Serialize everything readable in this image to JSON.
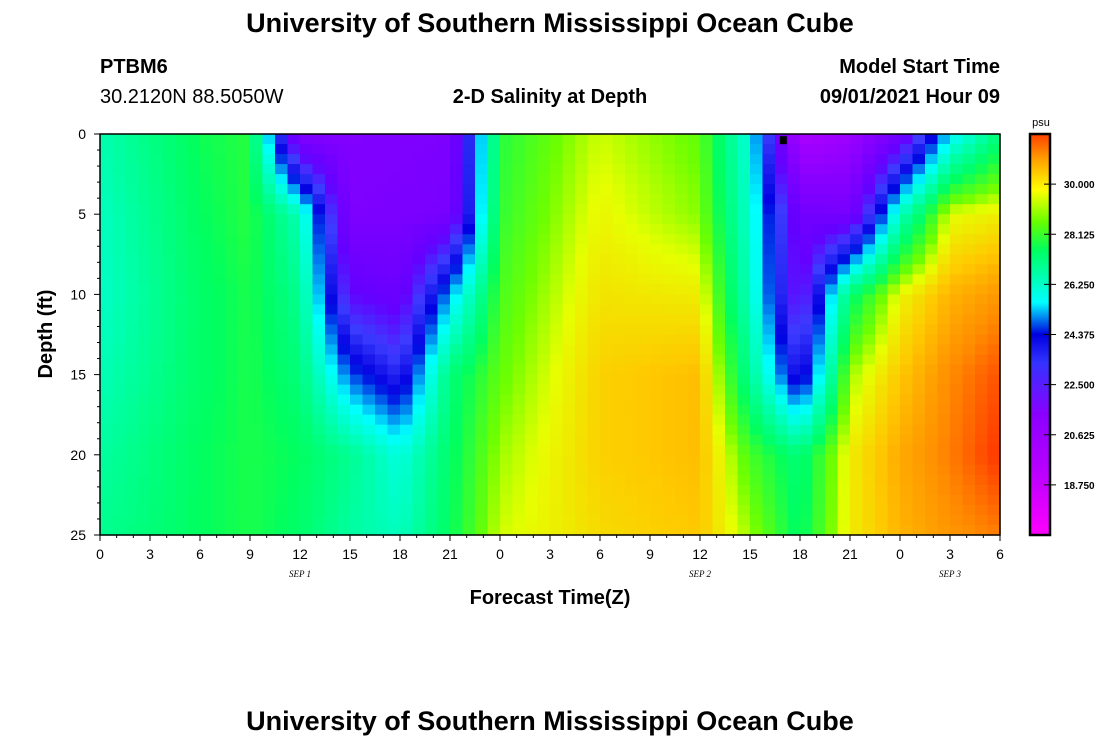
{
  "header": {
    "title": "University of Southern Mississippi Ocean Cube",
    "station_id": "PTBM6",
    "coordinates": "30.2120N  88.5050W",
    "chart_title": "2-D Salinity at Depth",
    "model_start_label": "Model Start Time",
    "model_start_value": "09/01/2021 Hour 09"
  },
  "footer": {
    "title": "University of Southern Mississippi Ocean Cube"
  },
  "chart_data": {
    "type": "heatmap",
    "xlabel": "Forecast Time(Z)",
    "ylabel": "Depth (ft)",
    "y_ticks": [
      0,
      5,
      10,
      15,
      20,
      25
    ],
    "y_range": [
      0,
      25
    ],
    "x_range_hours": [
      0,
      54
    ],
    "x_tick_labels": [
      "0",
      "3",
      "6",
      "9",
      "12",
      "15",
      "18",
      "21",
      "0",
      "3",
      "6",
      "9",
      "12",
      "15",
      "18",
      "21",
      "0",
      "3",
      "6"
    ],
    "date_labels": [
      {
        "text": "SEP 1",
        "at_hour": 12
      },
      {
        "text": "SEP 2",
        "at_hour": 36
      },
      {
        "text": "SEP 3",
        "at_hour": 51
      }
    ],
    "colorbar": {
      "unit": "psu",
      "range": [
        16.875,
        31.875
      ],
      "ticks": [
        "30.000",
        "28.125",
        "26.250",
        "24.375",
        "22.500",
        "20.625",
        "18.750"
      ],
      "ticks_values": [
        30.0,
        28.125,
        26.25,
        24.375,
        22.5,
        20.625,
        18.75
      ]
    },
    "marker": {
      "hour": 41,
      "depth": 0.2
    },
    "salinity_grid": {
      "note_depths_ft": [
        0,
        5,
        10,
        15,
        20,
        25
      ],
      "hours": [
        0,
        6,
        9,
        12,
        15,
        18,
        21,
        24,
        30,
        36,
        39,
        42,
        45,
        48,
        51,
        54
      ],
      "values": [
        [
          27.6,
          28.7,
          28.9,
          22.0,
          22.0,
          22.1,
          22.2,
          28.9,
          29.9,
          29.4,
          27.0,
          20.2,
          20.8,
          22.7,
          26.5,
          28.3
        ],
        [
          27.4,
          28.6,
          28.9,
          27.5,
          22.2,
          22.3,
          22.5,
          29.0,
          30.1,
          29.6,
          27.2,
          22.8,
          22.5,
          27.4,
          30.0,
          30.2
        ],
        [
          27.3,
          28.5,
          28.8,
          28.0,
          23.5,
          23.0,
          26.2,
          29.2,
          30.3,
          30.2,
          27.4,
          23.2,
          28.4,
          30.1,
          30.8,
          31.1
        ],
        [
          27.5,
          28.5,
          28.8,
          28.3,
          25.8,
          24.7,
          28.3,
          29.4,
          30.5,
          30.7,
          28.0,
          24.7,
          29.7,
          30.6,
          31.2,
          31.6
        ],
        [
          27.8,
          28.6,
          28.8,
          28.6,
          28.0,
          27.0,
          28.5,
          29.7,
          30.5,
          30.7,
          29.2,
          28.3,
          30.2,
          30.9,
          31.3,
          31.8
        ],
        [
          28.0,
          28.6,
          28.8,
          28.5,
          27.8,
          27.4,
          28.6,
          29.9,
          30.4,
          30.6,
          29.7,
          28.5,
          30.2,
          30.8,
          31.1,
          31.3
        ]
      ]
    }
  }
}
